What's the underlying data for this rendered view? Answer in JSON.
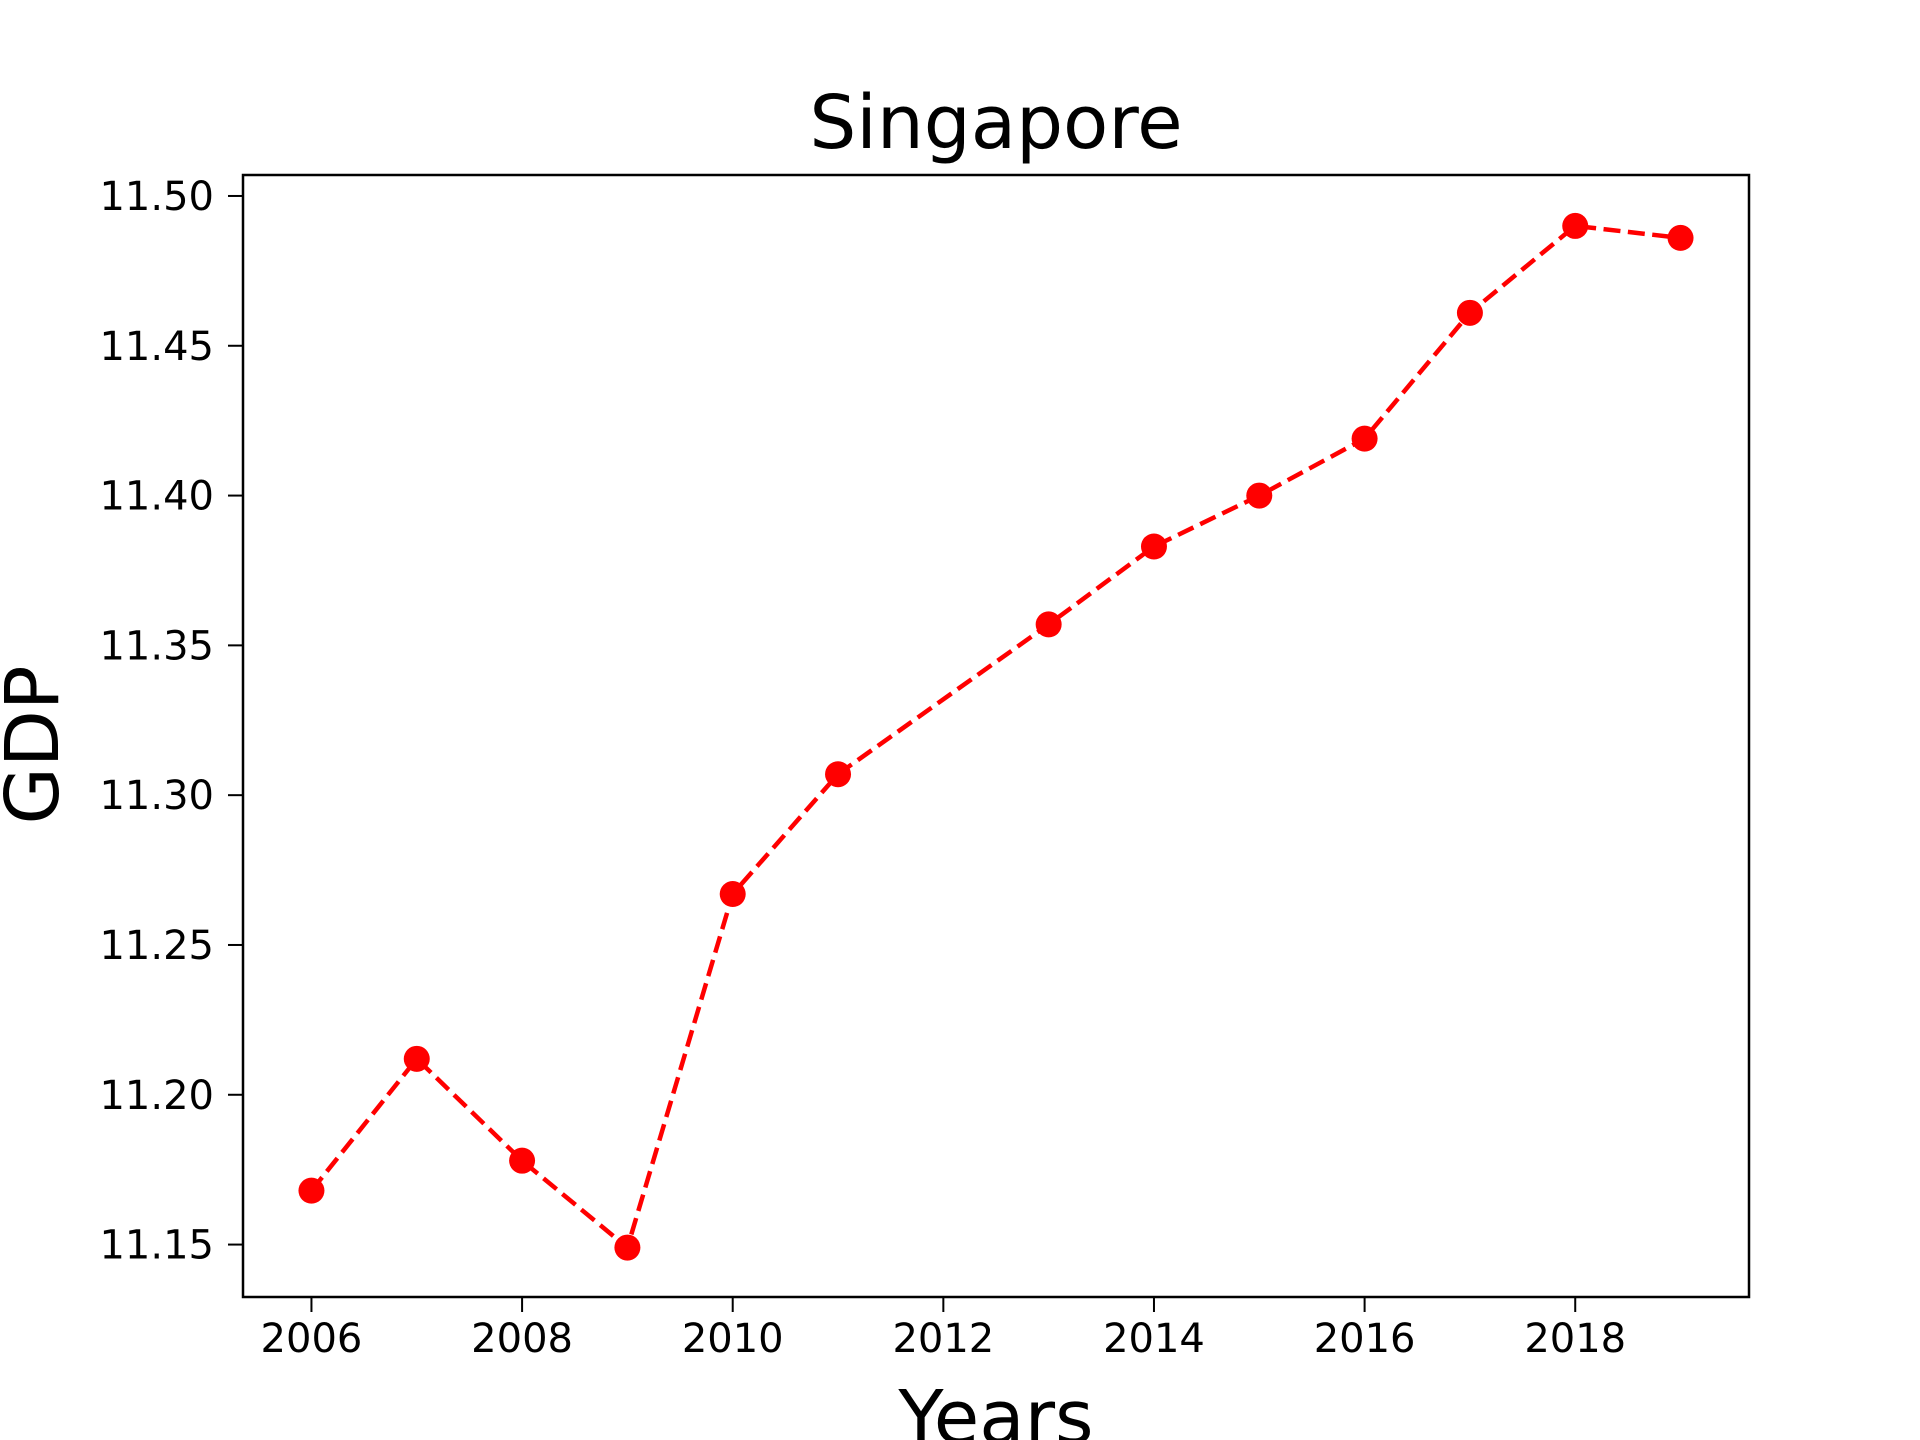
{
  "chart_data": {
    "type": "line",
    "title": "Singapore",
    "xlabel": "Years",
    "ylabel": "GDP",
    "xlim": [
      2005.35,
      2019.65
    ],
    "ylim": [
      11.1325,
      11.507
    ],
    "x_ticks": [
      2006,
      2008,
      2010,
      2012,
      2014,
      2016,
      2018
    ],
    "y_ticks": [
      "11.15",
      "11.20",
      "11.25",
      "11.30",
      "11.35",
      "11.40",
      "11.45",
      "11.50"
    ],
    "grid": false,
    "legend": "none",
    "series": [
      {
        "color": "#ff0000",
        "line_style": "dashed",
        "marker": "circle",
        "x": [
          2006,
          2007,
          2008,
          2009,
          2010,
          2011,
          2013,
          2014,
          2015,
          2016,
          2017,
          2018,
          2019
        ],
        "y": [
          11.168,
          11.212,
          11.178,
          11.149,
          11.267,
          11.307,
          11.357,
          11.383,
          11.4,
          11.419,
          11.461,
          11.49,
          11.486
        ]
      }
    ]
  }
}
